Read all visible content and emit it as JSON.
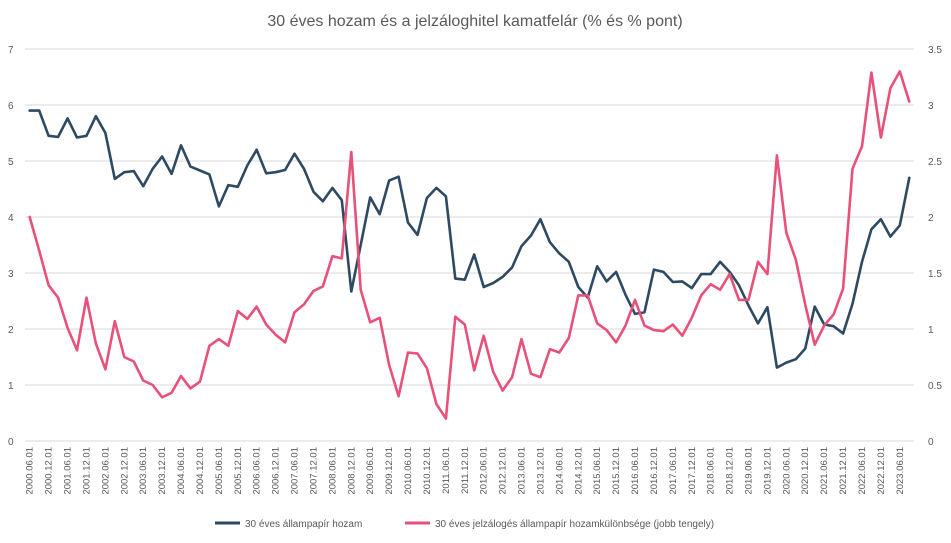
{
  "chart_data": {
    "type": "line",
    "title": "30 éves hozam és a jelzáloghitel kamatfelár (% és % pont)",
    "ylim": [
      0,
      7
    ],
    "y2lim": [
      0,
      3.5
    ],
    "yticks": [
      0,
      1,
      2,
      3,
      4,
      5,
      6,
      7
    ],
    "y2ticks": [
      0,
      0.5,
      1,
      1.5,
      2,
      2.5,
      3,
      3.5
    ],
    "grid": true,
    "legend_position": "bottom",
    "x": [
      "2000.06.01",
      "2000.09.01",
      "2000.12.01",
      "2001.03.01",
      "2001.06.01",
      "2001.09.01",
      "2001.12.01",
      "2002.03.01",
      "2002.06.01",
      "2002.09.01",
      "2002.12.01",
      "2003.03.01",
      "2003.06.01",
      "2003.09.01",
      "2003.12.01",
      "2004.03.01",
      "2004.06.01",
      "2004.09.01",
      "2004.12.01",
      "2005.03.01",
      "2005.06.01",
      "2005.09.01",
      "2005.12.01",
      "2006.03.01",
      "2006.06.01",
      "2006.09.01",
      "2006.12.01",
      "2007.03.01",
      "2007.06.01",
      "2007.09.01",
      "2007.12.01",
      "2008.03.01",
      "2008.06.01",
      "2008.09.01",
      "2008.12.01",
      "2009.03.01",
      "2009.06.01",
      "2009.09.01",
      "2009.12.01",
      "2010.03.01",
      "2010.06.01",
      "2010.09.01",
      "2010.12.01",
      "2011.03.01",
      "2011.06.01",
      "2011.09.01",
      "2011.12.01",
      "2012.03.01",
      "2012.06.01",
      "2012.09.01",
      "2012.12.01",
      "2013.03.01",
      "2013.06.01",
      "2013.09.01",
      "2013.12.01",
      "2014.03.01",
      "2014.06.01",
      "2014.09.01",
      "2014.12.01",
      "2015.03.01",
      "2015.06.01",
      "2015.09.01",
      "2015.12.01",
      "2016.03.01",
      "2016.06.01",
      "2016.09.01",
      "2016.12.01",
      "2017.03.01",
      "2017.06.01",
      "2017.09.01",
      "2017.12.01",
      "2018.03.01",
      "2018.06.01",
      "2018.09.01",
      "2018.12.01",
      "2019.03.01",
      "2019.06.01",
      "2019.09.01",
      "2019.12.01",
      "2020.03.01",
      "2020.06.01",
      "2020.09.01",
      "2020.12.01",
      "2021.03.01",
      "2021.06.01",
      "2021.09.01",
      "2021.12.01",
      "2022.03.01",
      "2022.06.01",
      "2022.09.01",
      "2022.12.01",
      "2023.03.01",
      "2023.06.01",
      "2023.09.01"
    ],
    "xtick_labels": [
      "2000.06.01",
      "2000.12.01",
      "2001.06.01",
      "2001.12.01",
      "2002.06.01",
      "2002.12.01",
      "2003.06.01",
      "2003.12.01",
      "2004.06.01",
      "2004.12.01",
      "2005.06.01",
      "2005.12.01",
      "2006.06.01",
      "2006.12.01",
      "2007.06.01",
      "2007.12.01",
      "2008.06.01",
      "2008.12.01",
      "2009.06.01",
      "2009.12.01",
      "2010.06.01",
      "2010.12.01",
      "2011.06.01",
      "2011.12.01",
      "2012.06.01",
      "2012.12.01",
      "2013.06.01",
      "2013.12.01",
      "2014.06.01",
      "2014.12.01",
      "2015.06.01",
      "2015.12.01",
      "2016.06.01",
      "2016.12.01",
      "2017.06.01",
      "2017.12.01",
      "2018.06.01",
      "2018.12.01",
      "2019.06.01",
      "2019.12.01",
      "2020.06.01",
      "2020.12.01",
      "2021.06.01",
      "2021.12.01",
      "2022.06.01",
      "2022.12.01",
      "2023.06.01"
    ],
    "series": [
      {
        "name": "30 éves állampapír hozam",
        "axis": "left",
        "color": "#2e4a62",
        "values": [
          5.9,
          5.9,
          5.45,
          5.43,
          5.76,
          5.42,
          5.45,
          5.8,
          5.5,
          4.68,
          4.8,
          4.82,
          4.55,
          4.86,
          5.08,
          4.77,
          5.28,
          4.9,
          4.83,
          4.76,
          4.19,
          4.57,
          4.54,
          4.92,
          5.2,
          4.78,
          4.8,
          4.84,
          5.13,
          4.86,
          4.45,
          4.28,
          4.52,
          4.3,
          2.67,
          3.5,
          4.35,
          4.05,
          4.65,
          4.72,
          3.9,
          3.68,
          4.34,
          4.52,
          4.37,
          2.9,
          2.88,
          3.33,
          2.75,
          2.82,
          2.93,
          3.1,
          3.48,
          3.67,
          3.96,
          3.55,
          3.35,
          3.2,
          2.75,
          2.56,
          3.12,
          2.85,
          3.02,
          2.61,
          2.27,
          2.3,
          3.06,
          3.02,
          2.84,
          2.85,
          2.73,
          2.98,
          2.98,
          3.2,
          3.02,
          2.78,
          2.42,
          2.1,
          2.39,
          1.31,
          1.4,
          1.46,
          1.65,
          2.4,
          2.08,
          2.05,
          1.92,
          2.45,
          3.2,
          3.78,
          3.96,
          3.65,
          3.85,
          4.7
        ]
      },
      {
        "name": "30 éves jelzálogés  állampapír hozamkülönbsége (jobb tengely)",
        "axis": "right",
        "color": "#e8517a",
        "values": [
          2.0,
          1.7,
          1.39,
          1.28,
          1.01,
          0.81,
          1.28,
          0.87,
          0.64,
          1.07,
          0.75,
          0.71,
          0.54,
          0.5,
          0.39,
          0.43,
          0.58,
          0.47,
          0.53,
          0.85,
          0.91,
          0.85,
          1.16,
          1.09,
          1.2,
          1.04,
          0.95,
          0.88,
          1.15,
          1.22,
          1.34,
          1.38,
          1.65,
          1.63,
          2.58,
          1.35,
          1.06,
          1.1,
          0.68,
          0.4,
          0.79,
          0.78,
          0.65,
          0.33,
          0.2,
          1.11,
          1.04,
          0.63,
          0.94,
          0.62,
          0.45,
          0.57,
          0.91,
          0.6,
          0.57,
          0.82,
          0.79,
          0.92,
          1.3,
          1.3,
          1.05,
          0.99,
          0.88,
          1.03,
          1.26,
          1.03,
          0.99,
          0.98,
          1.04,
          0.94,
          1.1,
          1.3,
          1.4,
          1.35,
          1.49,
          1.26,
          1.26,
          1.6,
          1.49,
          2.55,
          1.86,
          1.62,
          1.22,
          0.86,
          1.03,
          1.13,
          1.36,
          2.43,
          2.63,
          3.29,
          2.71,
          3.15,
          3.3,
          3.03
        ]
      }
    ]
  }
}
